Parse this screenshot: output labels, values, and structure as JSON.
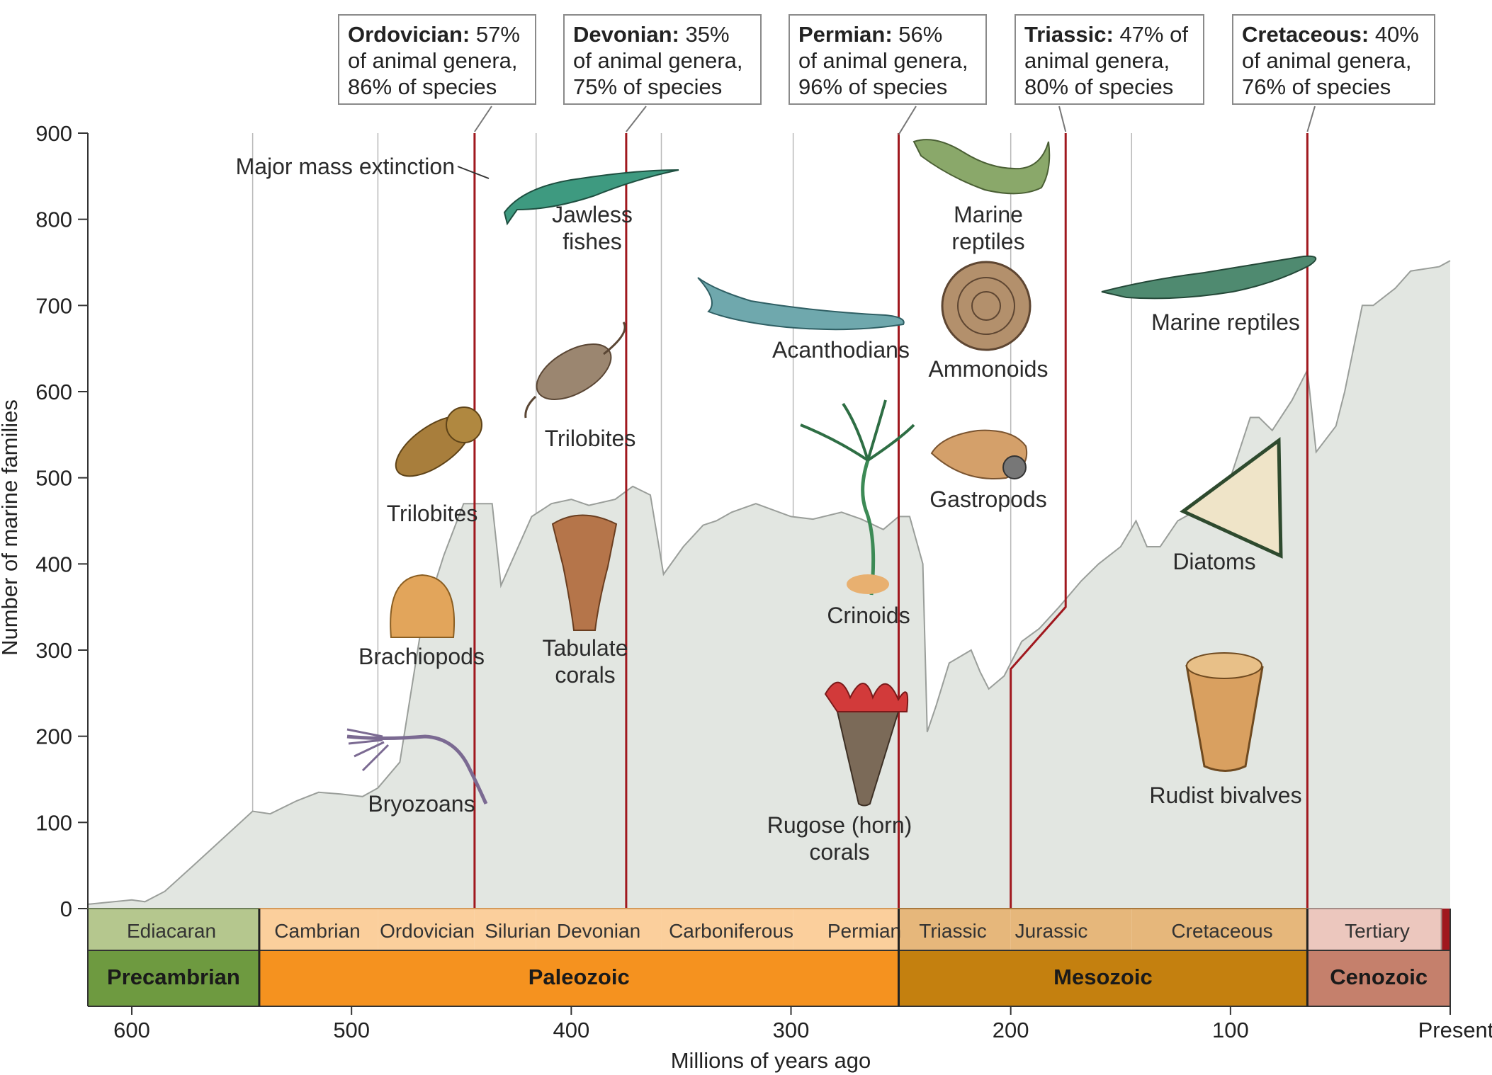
{
  "chart_data": {
    "type": "area",
    "xlabel": "Millions of years ago",
    "ylabel": "Number of marine families",
    "xlim": [
      620,
      0
    ],
    "ylim": [
      0,
      900
    ],
    "x_ticks": [
      {
        "value": 600,
        "label": "600"
      },
      {
        "value": 500,
        "label": "500"
      },
      {
        "value": 400,
        "label": "400"
      },
      {
        "value": 300,
        "label": "300"
      },
      {
        "value": 200,
        "label": "200"
      },
      {
        "value": 100,
        "label": "100"
      },
      {
        "value": 0,
        "label": "Present"
      }
    ],
    "y_ticks": [
      0,
      100,
      200,
      300,
      400,
      500,
      600,
      700,
      800,
      900
    ],
    "series": [
      {
        "points": [
          [
            620,
            5
          ],
          [
            600,
            10
          ],
          [
            594,
            8
          ],
          [
            585,
            20
          ],
          [
            572,
            50
          ],
          [
            545,
            113
          ],
          [
            537,
            110
          ],
          [
            525,
            125
          ],
          [
            515,
            135
          ],
          [
            505,
            133
          ],
          [
            495,
            130
          ],
          [
            488,
            140
          ],
          [
            478,
            170
          ],
          [
            468,
            330
          ],
          [
            458,
            410
          ],
          [
            449,
            470
          ],
          [
            436,
            470
          ],
          [
            432,
            375
          ],
          [
            418,
            455
          ],
          [
            409,
            470
          ],
          [
            400,
            475
          ],
          [
            392,
            468
          ],
          [
            380,
            475
          ],
          [
            372,
            490
          ],
          [
            364,
            480
          ],
          [
            358,
            388
          ],
          [
            349,
            420
          ],
          [
            340,
            445
          ],
          [
            334,
            450
          ],
          [
            327,
            460
          ],
          [
            316,
            470
          ],
          [
            300,
            455
          ],
          [
            290,
            452
          ],
          [
            277,
            460
          ],
          [
            268,
            452
          ],
          [
            258,
            440
          ],
          [
            251,
            455
          ],
          [
            246,
            455
          ],
          [
            240,
            400
          ],
          [
            238,
            205
          ],
          [
            234,
            235
          ],
          [
            228,
            285
          ],
          [
            218,
            300
          ],
          [
            214,
            275
          ],
          [
            210,
            255
          ],
          [
            203,
            270
          ],
          [
            195,
            310
          ],
          [
            187,
            325
          ],
          [
            178,
            350
          ],
          [
            168,
            380
          ],
          [
            160,
            400
          ],
          [
            150,
            420
          ],
          [
            143,
            450
          ],
          [
            138,
            420
          ],
          [
            132,
            420
          ],
          [
            124,
            450
          ],
          [
            110,
            470
          ],
          [
            100,
            500
          ],
          [
            91,
            570
          ],
          [
            87,
            570
          ],
          [
            81,
            555
          ],
          [
            72,
            590
          ],
          [
            65,
            625
          ],
          [
            61,
            530
          ],
          [
            52,
            560
          ],
          [
            48,
            600
          ],
          [
            40,
            700
          ],
          [
            35,
            700
          ],
          [
            25,
            720
          ],
          [
            18,
            740
          ],
          [
            5,
            745
          ],
          [
            0,
            752
          ]
        ]
      }
    ],
    "extinctions": [
      {
        "x": 444,
        "label": "Major mass extinction"
      },
      {
        "x": 375
      },
      {
        "x": 251
      },
      {
        "x": 200,
        "post_value": 350
      },
      {
        "x": 65
      }
    ],
    "grid_x": [
      545,
      488,
      444,
      416,
      359,
      299,
      251,
      200,
      145,
      65
    ],
    "periods": [
      {
        "name": "Ediacaran",
        "start": 620,
        "end": 542,
        "color": "#b5c78e"
      },
      {
        "name": "Cambrian",
        "start": 542,
        "end": 488,
        "color": "#fbcf9c"
      },
      {
        "name": "Ordovician",
        "start": 488,
        "end": 444,
        "color": "#fbcf9c"
      },
      {
        "name": "Silurian",
        "start": 444,
        "end": 416,
        "color": "#fbcf9c"
      },
      {
        "name": "Devonian",
        "start": 416,
        "end": 359,
        "color": "#fbcf9c"
      },
      {
        "name": "Carboniferous",
        "start": 359,
        "end": 299,
        "color": "#fbcf9c"
      },
      {
        "name": "Permian",
        "start": 299,
        "end": 251,
        "color": "#fbcf9c"
      },
      {
        "name": "Triassic",
        "start": 251,
        "end": 200,
        "color": "#e6b77b"
      },
      {
        "name": "Jurassic",
        "start": 200,
        "end": 145,
        "color": "#e6b77b"
      },
      {
        "name": "Cretaceous",
        "start": 145,
        "end": 65,
        "color": "#e6b77b"
      },
      {
        "name": "Tertiary",
        "start": 65,
        "end": 4,
        "color": "#ecc7be"
      },
      {
        "name": "",
        "start": 4,
        "end": 0,
        "color": "#a0181e"
      }
    ],
    "eras": [
      {
        "name": "Precambrian",
        "start": 620,
        "end": 542,
        "color": "#6e9a40"
      },
      {
        "name": "Paleozoic",
        "start": 542,
        "end": 251,
        "color": "#f5921f"
      },
      {
        "name": "Mesozoic",
        "start": 251,
        "end": 65,
        "color": "#c4800f"
      },
      {
        "name": "Cenozoic",
        "start": 65,
        "end": 0,
        "color": "#c5806c"
      }
    ],
    "callouts": [
      {
        "name": "Ordovician:",
        "text1": "57%",
        "text2": "of animal genera,",
        "text3": "86% of species"
      },
      {
        "name": "Devonian:",
        "text1": "35%",
        "text2": "of animal genera,",
        "text3": "75% of species"
      },
      {
        "name": "Permian:",
        "text1": "56%",
        "text2": "of animal genera,",
        "text3": "96% of species"
      },
      {
        "name": "Triassic:",
        "text1": "47% of",
        "text2": "animal genera,",
        "text3": "80% of species"
      },
      {
        "name": "Cretaceous:",
        "text1": "40%",
        "text2": "of animal genera,",
        "text3": "76% of species"
      }
    ],
    "organism_labels": [
      "Jawless",
      "fishes",
      "Trilobites",
      "Trilobites",
      "Brachiopods",
      "Bryozoans",
      "Tabulate",
      "corals",
      "Acanthodians",
      "Crinoids",
      "Rugose (horn)",
      "corals",
      "Marine",
      "reptiles",
      "Ammonoids",
      "Gastropods",
      "Marine reptiles",
      "Diatoms",
      "Rudist bivalves"
    ],
    "colors": {
      "area_fill": "#e2e6e1",
      "area_stroke": "#9a9e9a",
      "extinction_line": "#a0181e",
      "grid_line": "#b8b8b8"
    }
  }
}
